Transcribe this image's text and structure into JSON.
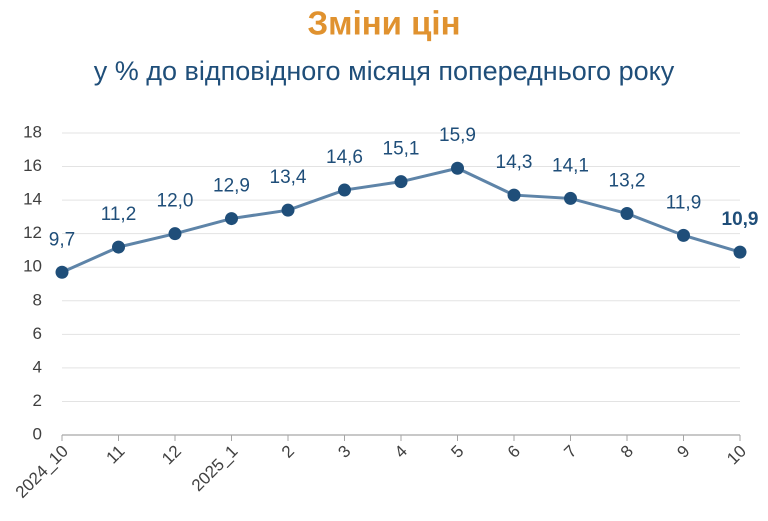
{
  "chart_data": {
    "type": "line",
    "title": "Зміни цін",
    "subtitle": "у % до відповідного місяця попереднього року",
    "categories": [
      "2024_10",
      "11",
      "12",
      "2025_1",
      "2",
      "3",
      "4",
      "5",
      "6",
      "7",
      "8",
      "9",
      "10"
    ],
    "values": [
      9.7,
      11.2,
      12.0,
      12.9,
      13.4,
      14.6,
      15.1,
      15.9,
      14.3,
      14.1,
      13.2,
      11.9,
      10.9
    ],
    "value_labels": [
      "9,7",
      "11,2",
      "12,0",
      "12,9",
      "13,4",
      "14,6",
      "15,1",
      "15,9",
      "14,3",
      "14,1",
      "13,2",
      "11,9",
      "10,9"
    ],
    "color": "#5E84A8",
    "marker_color": "#1F4E79",
    "ylim": [
      0,
      18
    ],
    "yticks": [
      0,
      2,
      4,
      6,
      8,
      10,
      12,
      14,
      16,
      18
    ],
    "grid": true
  }
}
